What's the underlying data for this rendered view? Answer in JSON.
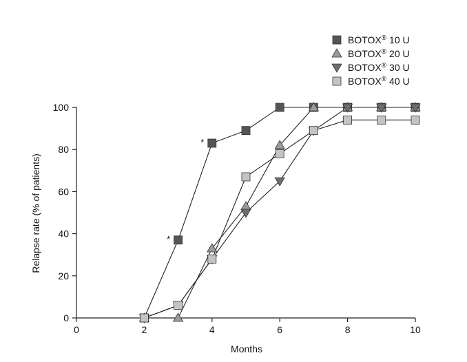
{
  "chart_data": {
    "type": "line",
    "title": "",
    "xlabel": "Months",
    "ylabel": "Relapse rate (% of patients)",
    "xlim": [
      0,
      10
    ],
    "ylim": [
      0,
      100
    ],
    "x_ticks": [
      0,
      2,
      4,
      6,
      8,
      10
    ],
    "y_ticks": [
      0,
      20,
      40,
      60,
      80,
      100
    ],
    "grid": false,
    "legend_position": "top-right",
    "series": [
      {
        "name": "BOTOX® 10 U",
        "marker": "square",
        "color": "#555555",
        "x": [
          2,
          3,
          4,
          5,
          6,
          7,
          8,
          9,
          10
        ],
        "y": [
          0,
          37,
          83,
          89,
          100,
          100,
          100,
          100,
          100
        ]
      },
      {
        "name": "BOTOX® 20 U",
        "marker": "triangle-up",
        "color": "#9a9a9a",
        "x": [
          2,
          3,
          4,
          5,
          6,
          7,
          8,
          9,
          10
        ],
        "y": [
          0,
          0,
          33,
          53,
          82,
          100,
          100,
          100,
          100
        ]
      },
      {
        "name": "BOTOX® 30 U",
        "marker": "triangle-down",
        "color": "#6e6e6e",
        "x": [
          2,
          3,
          4,
          5,
          6,
          7,
          8,
          9,
          10
        ],
        "y": [
          0,
          6,
          28,
          50,
          65,
          89,
          100,
          100,
          100
        ]
      },
      {
        "name": "BOTOX® 40 U",
        "marker": "square",
        "color": "#c4c4c4",
        "x": [
          2,
          3,
          4,
          5,
          6,
          7,
          8,
          9,
          10
        ],
        "y": [
          0,
          6,
          28,
          67,
          78,
          89,
          94,
          94,
          94
        ]
      }
    ],
    "annotations": [
      {
        "text": "*",
        "x": 3,
        "y": 37
      },
      {
        "text": "*",
        "x": 4,
        "y": 83
      }
    ]
  }
}
